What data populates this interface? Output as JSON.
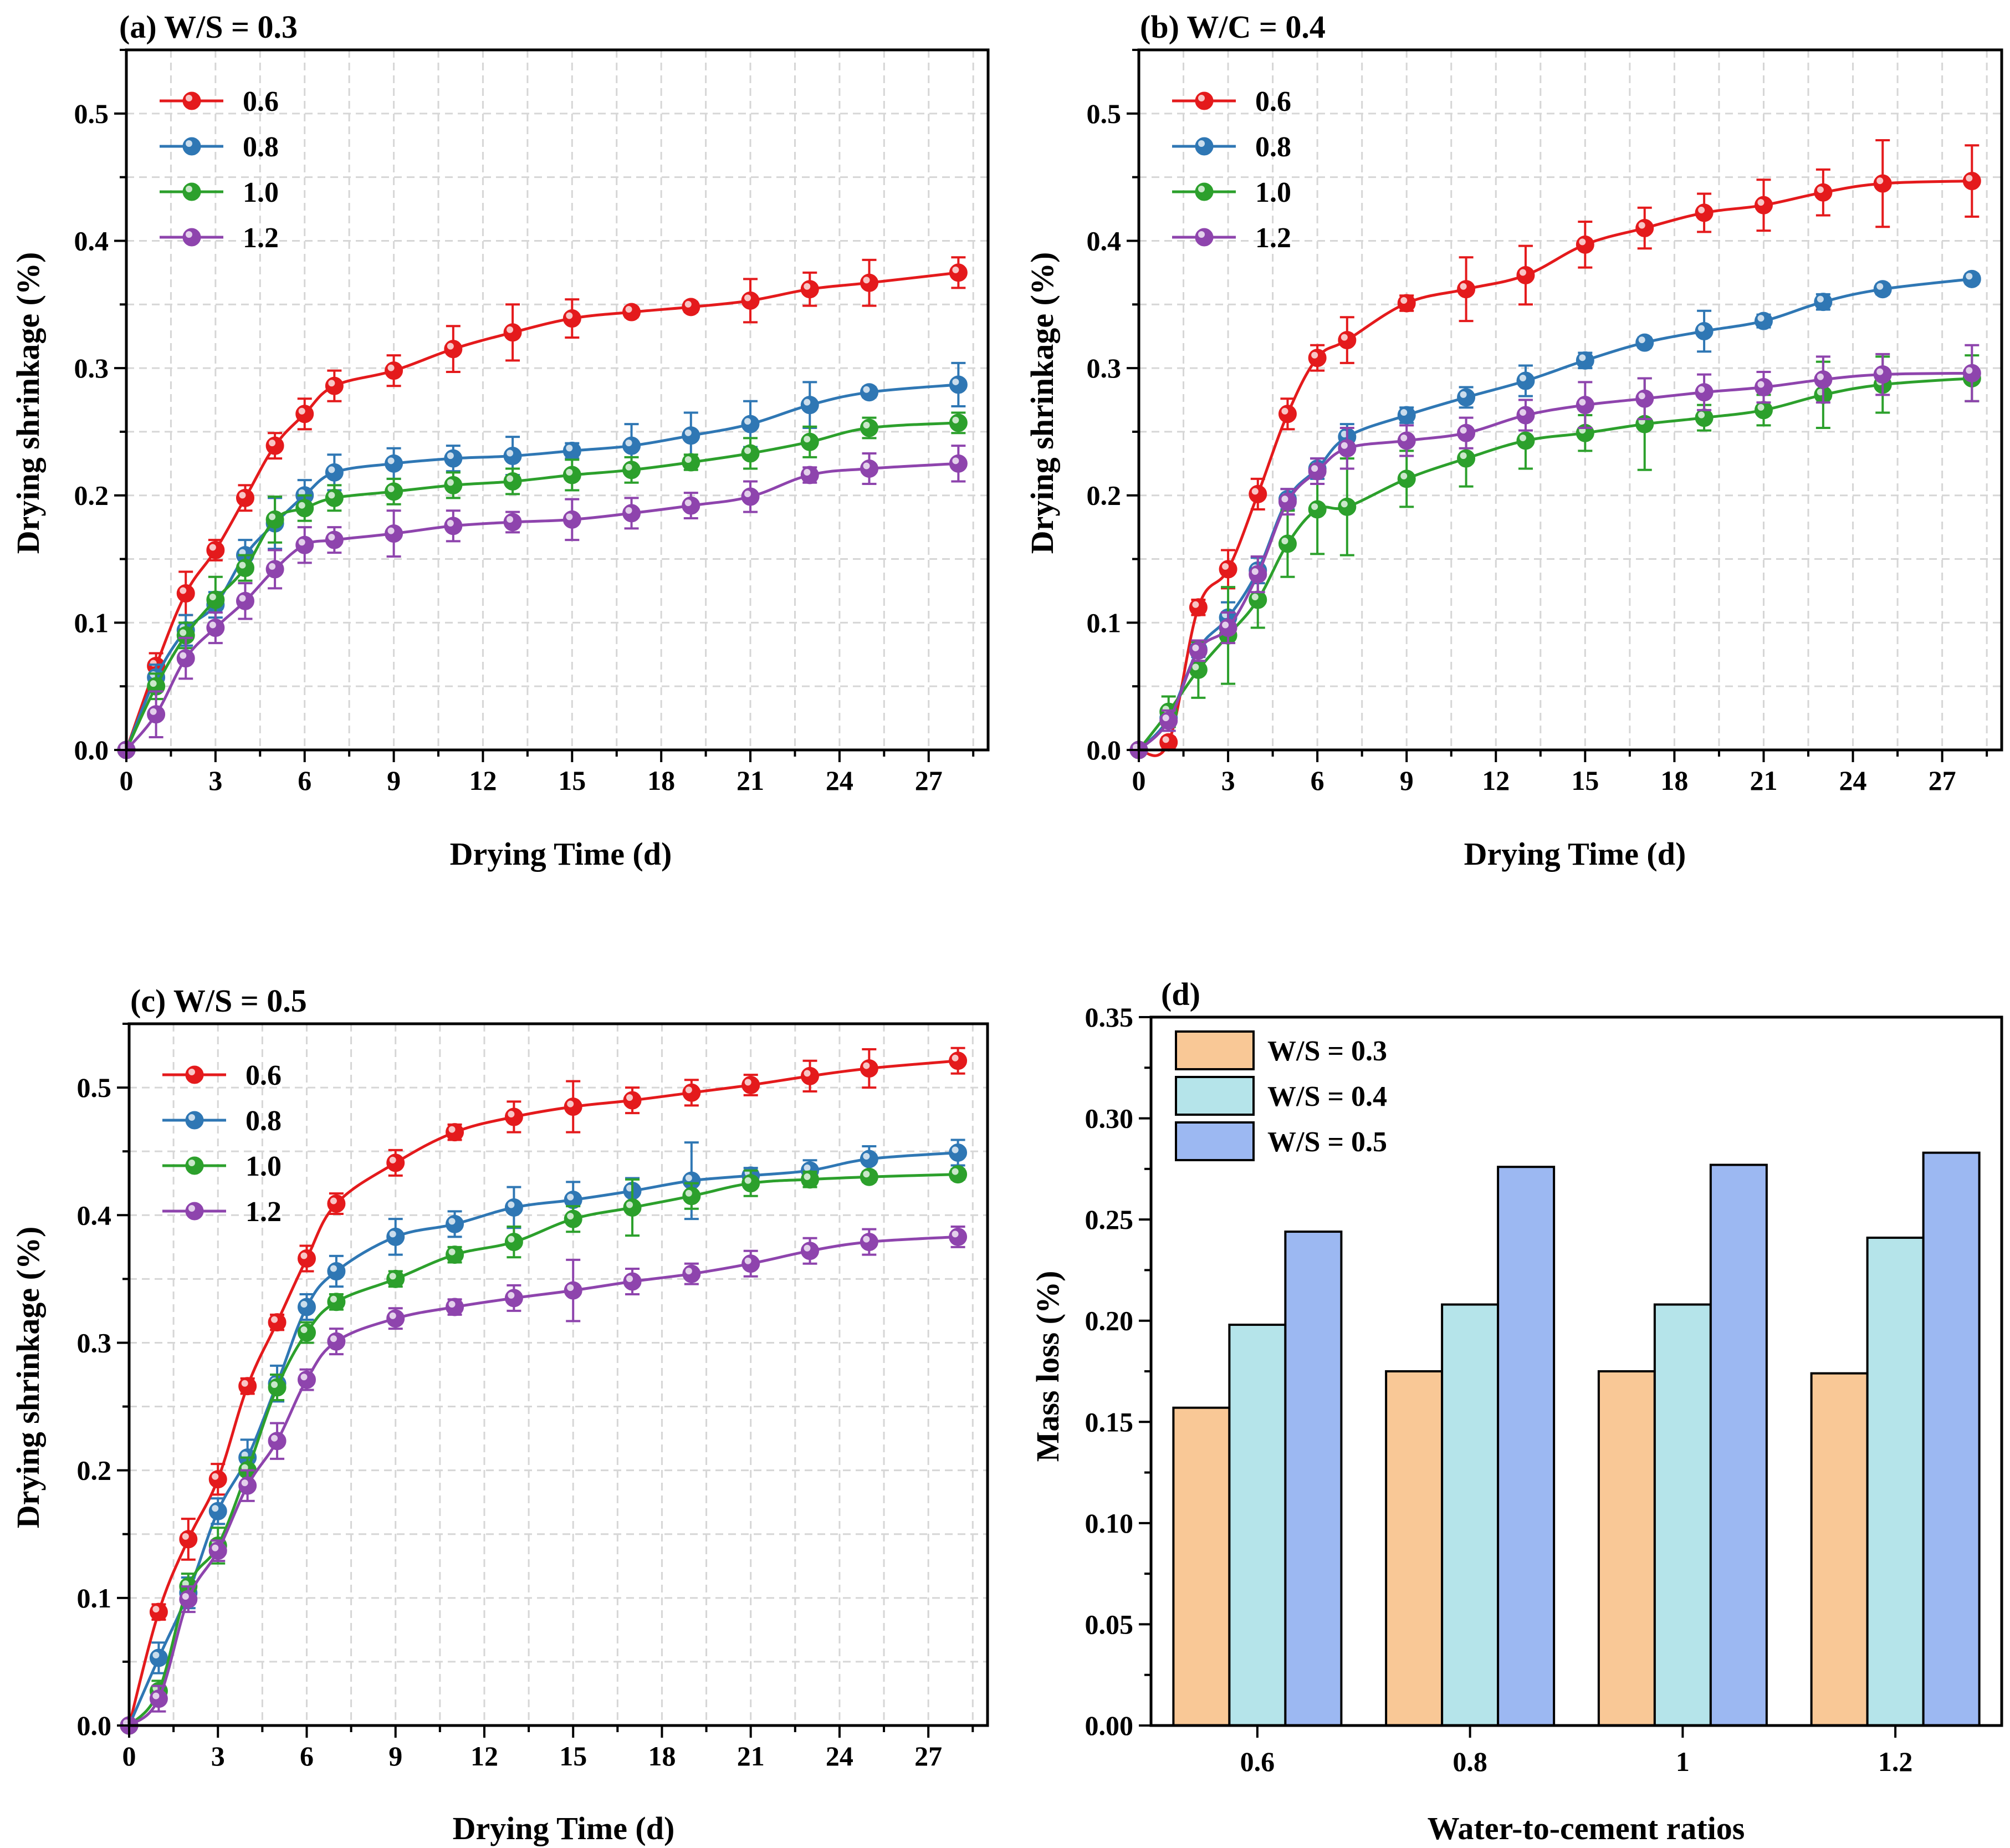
{
  "chart_data": [
    {
      "type": "line",
      "title": "(a) W/S = 0.3",
      "xlabel": "Drying Time (d)",
      "ylabel": "Drying shrinkage (%)",
      "xlim": [
        0,
        29
      ],
      "ylim": [
        0,
        0.55
      ],
      "xticks": [
        0,
        3,
        6,
        9,
        12,
        15,
        18,
        21,
        24,
        27
      ],
      "yticks": [
        0.0,
        0.1,
        0.2,
        0.3,
        0.4,
        0.5
      ],
      "x": [
        0,
        1,
        2,
        3,
        4,
        5,
        6,
        7,
        9,
        11,
        13,
        15,
        17,
        19,
        21,
        23,
        25,
        28
      ],
      "legend_position": "top-left",
      "series": [
        {
          "name": "0.6",
          "color": "#e41a1c",
          "values": [
            0,
            0.066,
            0.123,
            0.157,
            0.198,
            0.239,
            0.264,
            0.286,
            0.298,
            0.315,
            0.328,
            0.339,
            0.344,
            0.348,
            0.353,
            0.362,
            0.367,
            0.375
          ],
          "errors": [
            0,
            0.01,
            0.017,
            0.008,
            0.01,
            0.01,
            0.012,
            0.012,
            0.012,
            0.018,
            0.022,
            0.015,
            0.004,
            0.004,
            0.017,
            0.013,
            0.018,
            0.012
          ]
        },
        {
          "name": "0.8",
          "color": "#2f77b4",
          "values": [
            0,
            0.057,
            0.094,
            0.114,
            0.153,
            0.178,
            0.2,
            0.218,
            0.225,
            0.229,
            0.231,
            0.235,
            0.239,
            0.247,
            0.256,
            0.271,
            0.281,
            0.287
          ],
          "errors": [
            0,
            0.01,
            0.012,
            0.01,
            0.012,
            0.02,
            0.012,
            0.014,
            0.012,
            0.01,
            0.015,
            0.006,
            0.017,
            0.018,
            0.018,
            0.018,
            0.004,
            0.017
          ]
        },
        {
          "name": "1.0",
          "color": "#2ca02c",
          "values": [
            0,
            0.05,
            0.09,
            0.118,
            0.143,
            0.181,
            0.19,
            0.198,
            0.203,
            0.208,
            0.211,
            0.216,
            0.22,
            0.226,
            0.233,
            0.242,
            0.253,
            0.257
          ],
          "errors": [
            0,
            0.01,
            0.01,
            0.018,
            0.01,
            0.018,
            0.01,
            0.01,
            0.01,
            0.01,
            0.01,
            0.012,
            0.01,
            0.006,
            0.012,
            0.012,
            0.008,
            0.008
          ]
        },
        {
          "name": "1.2",
          "color": "#8e44ad",
          "values": [
            0,
            0.028,
            0.072,
            0.096,
            0.117,
            0.142,
            0.161,
            0.165,
            0.17,
            0.176,
            0.179,
            0.181,
            0.186,
            0.192,
            0.199,
            0.216,
            0.221,
            0.225
          ],
          "errors": [
            0,
            0.018,
            0.016,
            0.012,
            0.014,
            0.015,
            0.014,
            0.01,
            0.018,
            0.012,
            0.008,
            0.016,
            0.012,
            0.01,
            0.012,
            0.006,
            0.012,
            0.014
          ]
        }
      ]
    },
    {
      "type": "line",
      "title": "(b) W/C = 0.4",
      "xlabel": "Drying Time (d)",
      "ylabel": "Drying shrinkage (%)",
      "xlim": [
        0,
        29
      ],
      "ylim": [
        0,
        0.55
      ],
      "xticks": [
        0,
        3,
        6,
        9,
        12,
        15,
        18,
        21,
        24,
        27
      ],
      "yticks": [
        0.0,
        0.1,
        0.2,
        0.3,
        0.4,
        0.5
      ],
      "x": [
        0,
        1,
        2,
        3,
        4,
        5,
        6,
        7,
        9,
        11,
        13,
        15,
        17,
        19,
        21,
        23,
        25,
        28
      ],
      "legend_position": "top-left",
      "series": [
        {
          "name": "0.6",
          "color": "#e41a1c",
          "values": [
            0,
            0.006,
            0.112,
            0.142,
            0.201,
            0.264,
            0.308,
            0.322,
            0.351,
            0.362,
            0.373,
            0.397,
            0.41,
            0.422,
            0.428,
            0.438,
            0.445,
            0.447
          ],
          "errors": [
            0,
            0.004,
            0.006,
            0.015,
            0.012,
            0.012,
            0.01,
            0.018,
            0.006,
            0.025,
            0.023,
            0.018,
            0.016,
            0.015,
            0.02,
            0.018,
            0.034,
            0.028
          ]
        },
        {
          "name": "0.8",
          "color": "#2f77b4",
          "values": [
            0,
            0.025,
            0.079,
            0.104,
            0.141,
            0.197,
            0.221,
            0.246,
            0.263,
            0.277,
            0.29,
            0.306,
            0.32,
            0.329,
            0.337,
            0.352,
            0.362,
            0.37
          ],
          "errors": [
            0,
            0.006,
            0.006,
            0.012,
            0.01,
            0.008,
            0.008,
            0.01,
            0.006,
            0.008,
            0.012,
            0.006,
            0.004,
            0.016,
            0.005,
            0.006,
            0.004,
            0.004
          ]
        },
        {
          "name": "1.0",
          "color": "#2ca02c",
          "values": [
            0,
            0.03,
            0.063,
            0.09,
            0.118,
            0.162,
            0.189,
            0.191,
            0.213,
            0.229,
            0.243,
            0.249,
            0.256,
            0.261,
            0.267,
            0.279,
            0.287,
            0.292
          ],
          "errors": [
            0,
            0.012,
            0.022,
            0.038,
            0.022,
            0.026,
            0.035,
            0.038,
            0.022,
            0.022,
            0.022,
            0.014,
            0.036,
            0.01,
            0.012,
            0.026,
            0.022,
            0.018
          ]
        },
        {
          "name": "1.2",
          "color": "#8e44ad",
          "values": [
            0,
            0.023,
            0.078,
            0.096,
            0.138,
            0.195,
            0.219,
            0.237,
            0.243,
            0.249,
            0.263,
            0.271,
            0.276,
            0.281,
            0.285,
            0.291,
            0.295,
            0.296
          ],
          "errors": [
            0,
            0.008,
            0.008,
            0.012,
            0.014,
            0.01,
            0.01,
            0.016,
            0.012,
            0.012,
            0.012,
            0.018,
            0.016,
            0.014,
            0.012,
            0.018,
            0.016,
            0.022
          ]
        }
      ]
    },
    {
      "type": "line",
      "title": "(c) W/S = 0.5",
      "xlabel": "Drying Time (d)",
      "ylabel": "Drying shrinkage (%)",
      "xlim": [
        0,
        29
      ],
      "ylim": [
        0,
        0.55
      ],
      "xticks": [
        0,
        3,
        6,
        9,
        12,
        15,
        18,
        21,
        24,
        27
      ],
      "yticks": [
        0.0,
        0.1,
        0.2,
        0.3,
        0.4,
        0.5
      ],
      "x": [
        0,
        1,
        2,
        3,
        4,
        5,
        6,
        7,
        9,
        11,
        13,
        15,
        17,
        19,
        21,
        23,
        25,
        28
      ],
      "legend_position": "top-left",
      "series": [
        {
          "name": "0.6",
          "color": "#e41a1c",
          "values": [
            0,
            0.089,
            0.146,
            0.193,
            0.266,
            0.316,
            0.366,
            0.409,
            0.441,
            0.465,
            0.477,
            0.485,
            0.49,
            0.496,
            0.502,
            0.509,
            0.515,
            0.521
          ],
          "errors": [
            0,
            0.006,
            0.016,
            0.012,
            0.006,
            0.006,
            0.01,
            0.008,
            0.01,
            0.006,
            0.012,
            0.02,
            0.01,
            0.01,
            0.008,
            0.012,
            0.015,
            0.01
          ]
        },
        {
          "name": "0.8",
          "color": "#2f77b4",
          "values": [
            0,
            0.053,
            0.104,
            0.168,
            0.21,
            0.268,
            0.328,
            0.356,
            0.383,
            0.393,
            0.406,
            0.412,
            0.419,
            0.427,
            0.431,
            0.435,
            0.444,
            0.449
          ],
          "errors": [
            0,
            0.012,
            0.012,
            0.01,
            0.014,
            0.014,
            0.01,
            0.012,
            0.014,
            0.01,
            0.016,
            0.014,
            0.01,
            0.03,
            0.006,
            0.008,
            0.01,
            0.01
          ]
        },
        {
          "name": "1.0",
          "color": "#2ca02c",
          "values": [
            0,
            0.027,
            0.109,
            0.141,
            0.2,
            0.265,
            0.308,
            0.332,
            0.35,
            0.369,
            0.379,
            0.397,
            0.406,
            0.415,
            0.425,
            0.428,
            0.43,
            0.432
          ],
          "errors": [
            0,
            0.008,
            0.01,
            0.014,
            0.01,
            0.01,
            0.008,
            0.006,
            0.006,
            0.006,
            0.012,
            0.01,
            0.022,
            0.01,
            0.01,
            0.006,
            0.004,
            0.004
          ]
        },
        {
          "name": "1.2",
          "color": "#8e44ad",
          "values": [
            0,
            0.021,
            0.099,
            0.137,
            0.188,
            0.223,
            0.271,
            0.301,
            0.319,
            0.328,
            0.335,
            0.341,
            0.348,
            0.354,
            0.362,
            0.372,
            0.379,
            0.383
          ],
          "errors": [
            0,
            0.01,
            0.01,
            0.008,
            0.012,
            0.014,
            0.008,
            0.01,
            0.008,
            0.006,
            0.01,
            0.024,
            0.01,
            0.008,
            0.01,
            0.01,
            0.01,
            0.008
          ]
        }
      ]
    },
    {
      "type": "bar",
      "title": "(d)",
      "xlabel": "Water-to-cement ratios",
      "ylabel": "Mass loss (%)",
      "categories": [
        "0.6",
        "0.8",
        "1",
        "1.2"
      ],
      "ylim": [
        0,
        0.35
      ],
      "yticks": [
        "0.00",
        "0.05",
        "0.10",
        "0.15",
        "0.20",
        "0.25",
        "0.30",
        "0.35"
      ],
      "legend_position": "top-left",
      "series": [
        {
          "name": "W/S = 0.3",
          "color": "#f9c896",
          "values": [
            0.157,
            0.175,
            0.175,
            0.174
          ]
        },
        {
          "name": "W/S = 0.4",
          "color": "#b5e4ea",
          "values": [
            0.198,
            0.208,
            0.208,
            0.241
          ]
        },
        {
          "name": "W/S = 0.5",
          "color": "#9cb8f2",
          "values": [
            0.244,
            0.276,
            0.277,
            0.283
          ]
        }
      ]
    }
  ]
}
